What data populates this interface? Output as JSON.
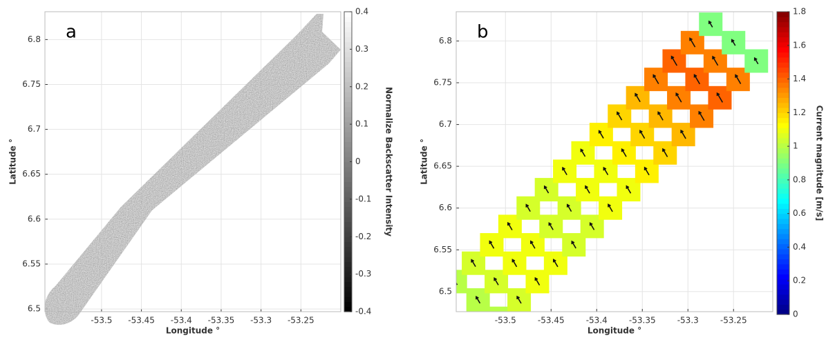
{
  "chart_data": [
    {
      "type": "image",
      "panel_label": "a",
      "xlabel": "Longitude °",
      "ylabel": "Latitude °",
      "xlim": [
        -53.571,
        -53.2
      ],
      "ylim": [
        6.497,
        6.831
      ],
      "xticks": [
        -53.5,
        -53.45,
        -53.4,
        -53.35,
        -53.3,
        -53.25
      ],
      "yticks": [
        6.5,
        6.55,
        6.6,
        6.65,
        6.7,
        6.75,
        6.8
      ],
      "grid": true,
      "colormap": "gray",
      "colorbar_label": "Normalize Backscatter Intensity",
      "clim": [
        -0.4,
        0.4
      ],
      "cticks": [
        -0.4,
        -0.3,
        -0.2,
        -0.1,
        0,
        0.1,
        0.2,
        0.3,
        0.4
      ]
    },
    {
      "type": "quiver",
      "panel_label": "b",
      "xlabel": "Longitude °",
      "ylabel": "Latitude °",
      "xlim": [
        -53.554,
        -53.207
      ],
      "ylim": [
        6.476,
        6.835
      ],
      "xticks": [
        -53.5,
        -53.45,
        -53.4,
        -53.35,
        -53.3,
        -53.25
      ],
      "yticks": [
        6.5,
        6.55,
        6.6,
        6.65,
        6.7,
        6.75,
        6.8
      ],
      "grid": true,
      "colormap": "jet",
      "colorbar_label": "Current magnitude [m/s]",
      "clim": [
        0,
        1.8
      ],
      "cticks": [
        0,
        0.2,
        0.4,
        0.6,
        0.8,
        1,
        1.2,
        1.4,
        1.6,
        1.8
      ],
      "x": [
        -53.555,
        -53.53,
        -53.505,
        -53.535,
        -53.51,
        -53.485,
        -53.515,
        -53.49,
        -53.465,
        -53.495,
        -53.47,
        -53.445,
        -53.475,
        -53.45,
        -53.425,
        -53.455,
        -53.43,
        -53.405,
        -53.435,
        -53.41,
        -53.385,
        -53.415,
        -53.39,
        -53.365,
        -53.395,
        -53.37,
        -53.345,
        -53.375,
        -53.35,
        -53.325,
        -53.355,
        -53.33,
        -53.305,
        -53.335,
        -53.31,
        -53.285,
        -53.315,
        -53.29,
        -53.265,
        -53.295,
        -53.27,
        -53.245,
        -53.275,
        -53.25,
        -53.225
      ],
      "y": [
        6.512,
        6.49,
        6.468,
        6.534,
        6.512,
        6.49,
        6.556,
        6.534,
        6.512,
        6.578,
        6.556,
        6.534,
        6.6,
        6.578,
        6.556,
        6.622,
        6.6,
        6.578,
        6.644,
        6.622,
        6.6,
        6.666,
        6.644,
        6.622,
        6.688,
        6.666,
        6.644,
        6.71,
        6.688,
        6.666,
        6.732,
        6.71,
        6.688,
        6.754,
        6.732,
        6.71,
        6.776,
        6.754,
        6.732,
        6.798,
        6.776,
        6.754,
        6.82,
        6.798,
        6.776
      ],
      "values": [
        1.0,
        1.0,
        1.0,
        1.05,
        1.05,
        1.05,
        1.1,
        1.1,
        1.1,
        1.1,
        1.1,
        1.1,
        1.05,
        1.05,
        1.05,
        1.05,
        1.05,
        1.05,
        1.1,
        1.1,
        1.1,
        1.1,
        1.1,
        1.1,
        1.15,
        1.15,
        1.15,
        1.2,
        1.2,
        1.2,
        1.25,
        1.25,
        1.25,
        1.35,
        1.35,
        1.35,
        1.4,
        1.4,
        1.4,
        1.35,
        1.35,
        1.35,
        0.9,
        0.9,
        0.9
      ]
    }
  ]
}
